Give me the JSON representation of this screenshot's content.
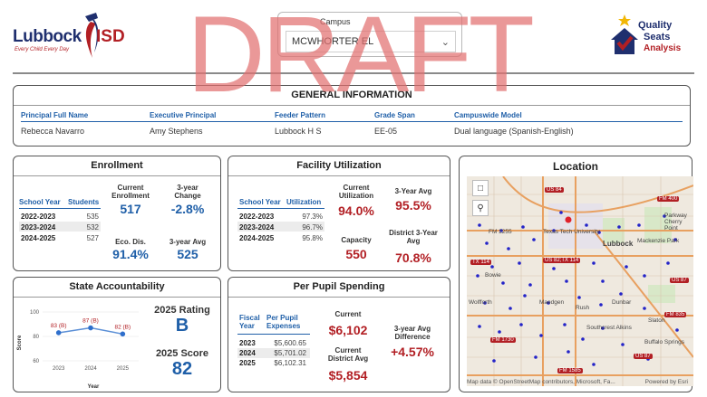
{
  "header": {
    "district_name": "Lubbock",
    "district_suffix": "ISD",
    "district_tagline": "Every Child Every Day",
    "campus_label": "Campus",
    "campus_value": "MCWHORTER EL",
    "qsa_line1": "Quality",
    "qsa_line2": "Seats",
    "qsa_line3": "Analysis"
  },
  "watermark": "DRAFT",
  "general_info": {
    "title": "GENERAL INFORMATION",
    "columns": [
      "Principal Full Name",
      "Executive Principal",
      "Feeder Pattern",
      "Grade Span",
      "Campuswide Model"
    ],
    "values": [
      "Rebecca Navarro",
      "Amy Stephens",
      "Lubbock H S",
      "EE-05",
      "Dual language (Spanish-English)"
    ]
  },
  "enrollment": {
    "title": "Enrollment",
    "col_year": "School Year",
    "col_students": "Students",
    "rows": [
      {
        "year": "2022-2023",
        "students": "535"
      },
      {
        "year": "2023-2024",
        "students": "532"
      },
      {
        "year": "2024-2025",
        "students": "527"
      }
    ],
    "current_label": "Current Enrollment",
    "current_value": "517",
    "change_label": "3-year Change",
    "change_value": "-2.8%",
    "eco_label": "Eco. Dis.",
    "eco_value": "91.4%",
    "avg_label": "3-year Avg",
    "avg_value": "525"
  },
  "facility": {
    "title": "Facility Utilization",
    "col_year": "School Year",
    "col_util": "Utilization",
    "rows": [
      {
        "year": "2022-2023",
        "util": "97.3%"
      },
      {
        "year": "2023-2024",
        "util": "96.7%"
      },
      {
        "year": "2024-2025",
        "util": "95.8%"
      }
    ],
    "current_label": "Current Utilization",
    "current_value": "94.0%",
    "avg_label": "3-Year Avg",
    "avg_value": "95.5%",
    "capacity_label": "Capacity",
    "capacity_value": "550",
    "district_label": "District 3-Year Avg",
    "district_value": "70.8%"
  },
  "location": {
    "title": "Location",
    "attribution": "Map data © OpenStreetMap contributors, Microsoft, Fa...",
    "powered": "Powered by Esri",
    "labels": [
      "US 84",
      "FM 2255",
      "Texas Tech University",
      "Lubbock",
      "US 82;TX 114",
      "Mackenzie Park",
      "Parkway Cherry Point",
      "Bowie",
      "Maedgen",
      "Wolfforth",
      "Slaton",
      "Rush",
      "Dunbar",
      "Southcrest Alkins",
      "Buffalo Springs",
      "US 87",
      "TX 114",
      "FM 835",
      "FM 1585",
      "FM 1730",
      "US 87",
      "FM 400"
    ]
  },
  "accountability": {
    "title": "State Accountability",
    "chart_data": {
      "type": "line",
      "categories": [
        "2023",
        "2024",
        "2025"
      ],
      "values": [
        83,
        87,
        82
      ],
      "point_labels": [
        "83 (B)",
        "87 (B)",
        "82 (B)"
      ],
      "ylabel": "Score",
      "xlabel": "Year",
      "ylim": [
        60,
        100
      ],
      "yticks": [
        "60",
        "80",
        "100"
      ]
    },
    "rating_label": "2025 Rating",
    "rating_value": "B",
    "score_label": "2025 Score",
    "score_value": "82"
  },
  "per_pupil": {
    "title": "Per Pupil Spending",
    "col_year": "Fiscal Year",
    "col_exp": "Per Pupil Expenses",
    "rows": [
      {
        "year": "2023",
        "exp": "$5,600.65"
      },
      {
        "year": "2024",
        "exp": "$5,701.02"
      },
      {
        "year": "2025",
        "exp": "$6,102.31"
      }
    ],
    "current_label": "Current",
    "current_value": "$6,102",
    "district_label": "Current District Avg",
    "district_value": "$5,854",
    "diff_label": "3-year Avg Difference",
    "diff_value": "+4.57%"
  },
  "colors": {
    "blue": "#1f5fa8",
    "red": "#b21f24",
    "navy": "#1f2f6e"
  }
}
